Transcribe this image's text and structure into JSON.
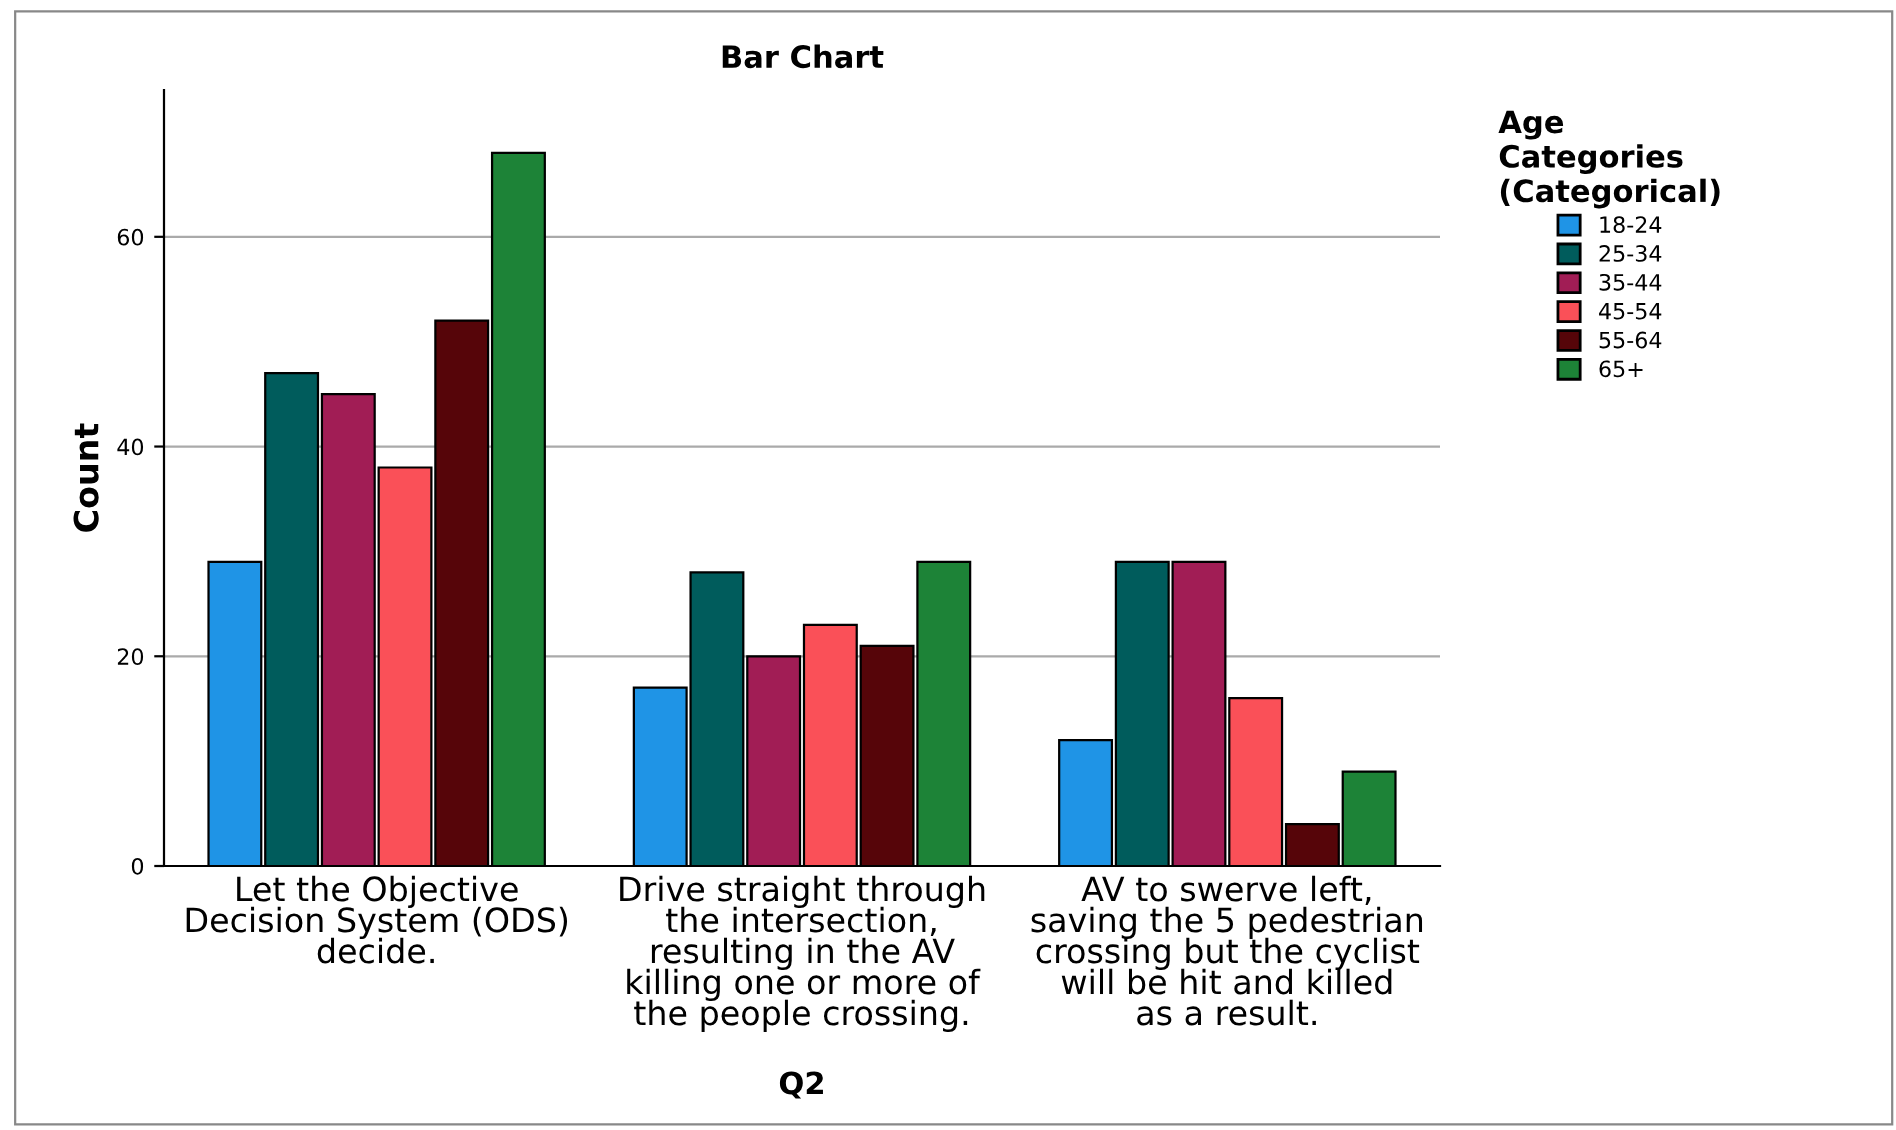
{
  "chart_data": {
    "type": "bar",
    "title": "Bar Chart",
    "xlabel": "Q2",
    "ylabel": "Count",
    "legend_title": "Age Categories (Categorical)",
    "categories": [
      "Let the Objective Decision System (ODS) decide.",
      "Drive straight through the intersection, resulting in the AV killing one or more of the people crossing.",
      "AV to swerve left, saving the 5 pedestrian crossing but the cyclist will be hit and killed as a result."
    ],
    "series": [
      {
        "name": "18-24",
        "color": "#1f94e6",
        "values": [
          29,
          17,
          12
        ]
      },
      {
        "name": "25-34",
        "color": "#005c5c",
        "values": [
          47,
          28,
          29
        ]
      },
      {
        "name": "35-44",
        "color": "#a11d55",
        "values": [
          45,
          20,
          29
        ]
      },
      {
        "name": "45-54",
        "color": "#fa5058",
        "values": [
          38,
          23,
          16
        ]
      },
      {
        "name": "55-64",
        "color": "#560509",
        "values": [
          52,
          21,
          4
        ]
      },
      {
        "name": "65+",
        "color": "#1d8337",
        "values": [
          68,
          29,
          9
        ]
      }
    ],
    "ylim": [
      0,
      74
    ],
    "yticks": [
      0,
      20,
      40,
      60
    ],
    "grid": "y",
    "legend": "top right"
  }
}
